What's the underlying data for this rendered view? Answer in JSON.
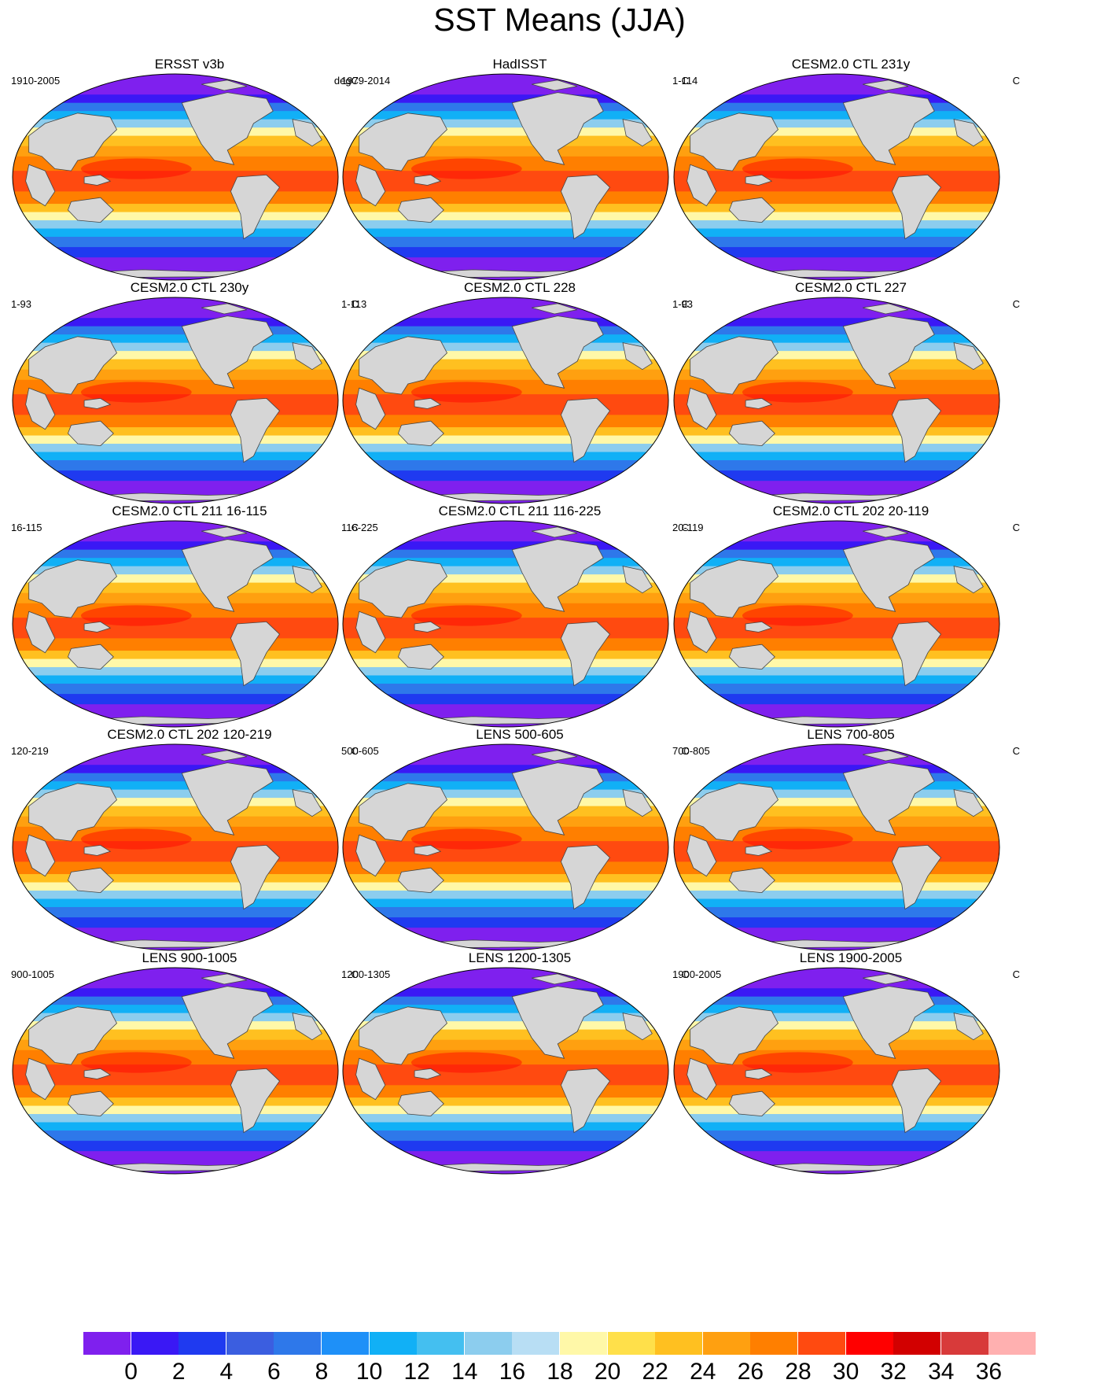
{
  "title": "SST Means (JJA)",
  "panels": [
    {
      "title": "ERSST v3b",
      "years": "1910-2005",
      "units": "degC"
    },
    {
      "title": "HadISST",
      "years": "1979-2014",
      "units": "C"
    },
    {
      "title": "CESM2.0 CTL 231y",
      "years": "1-114",
      "units": "C"
    },
    {
      "title": "CESM2.0 CTL 230y",
      "years": "1-93",
      "units": "C"
    },
    {
      "title": "CESM2.0 CTL 228",
      "years": "1-113",
      "units": "C"
    },
    {
      "title": "CESM2.0 CTL 227",
      "years": "1-93",
      "units": "C"
    },
    {
      "title": "CESM2.0 CTL 211 16-115",
      "years": "16-115",
      "units": "C"
    },
    {
      "title": "CESM2.0 CTL 211 116-225",
      "years": "116-225",
      "units": "C"
    },
    {
      "title": "CESM2.0 CTL 202 20-119",
      "years": "20-119",
      "units": "C"
    },
    {
      "title": "CESM2.0 CTL 202 120-219",
      "years": "120-219",
      "units": "C"
    },
    {
      "title": "LENS 500-605",
      "years": "500-605",
      "units": "C"
    },
    {
      "title": "LENS 700-805",
      "years": "700-805",
      "units": "C"
    },
    {
      "title": "LENS 900-1005",
      "years": "900-1005",
      "units": "C"
    },
    {
      "title": "LENS 1200-1305",
      "years": "1200-1305",
      "units": "C"
    },
    {
      "title": "LENS 1900-2005",
      "years": "1900-2005",
      "units": "C"
    }
  ],
  "colorbar": {
    "labels": [
      "0",
      "2",
      "4",
      "6",
      "8",
      "10",
      "12",
      "14",
      "16",
      "18",
      "20",
      "22",
      "24",
      "26",
      "28",
      "30",
      "32",
      "34",
      "36"
    ],
    "colors": [
      "#7f20ee",
      "#3a18f5",
      "#1f3af0",
      "#3b5ee0",
      "#2e78ea",
      "#1e90f8",
      "#11b0f6",
      "#44bff0",
      "#8ccdee",
      "#b8def4",
      "#fff8a8",
      "#ffe04a",
      "#ffc020",
      "#ffa010",
      "#ff7f00",
      "#ff4a10",
      "#ff0000",
      "#d20000",
      "#d83a3a",
      "#ffb0b0"
    ]
  },
  "map_colors": {
    "land": "#d6d6d6",
    "coast": "#444444"
  }
}
